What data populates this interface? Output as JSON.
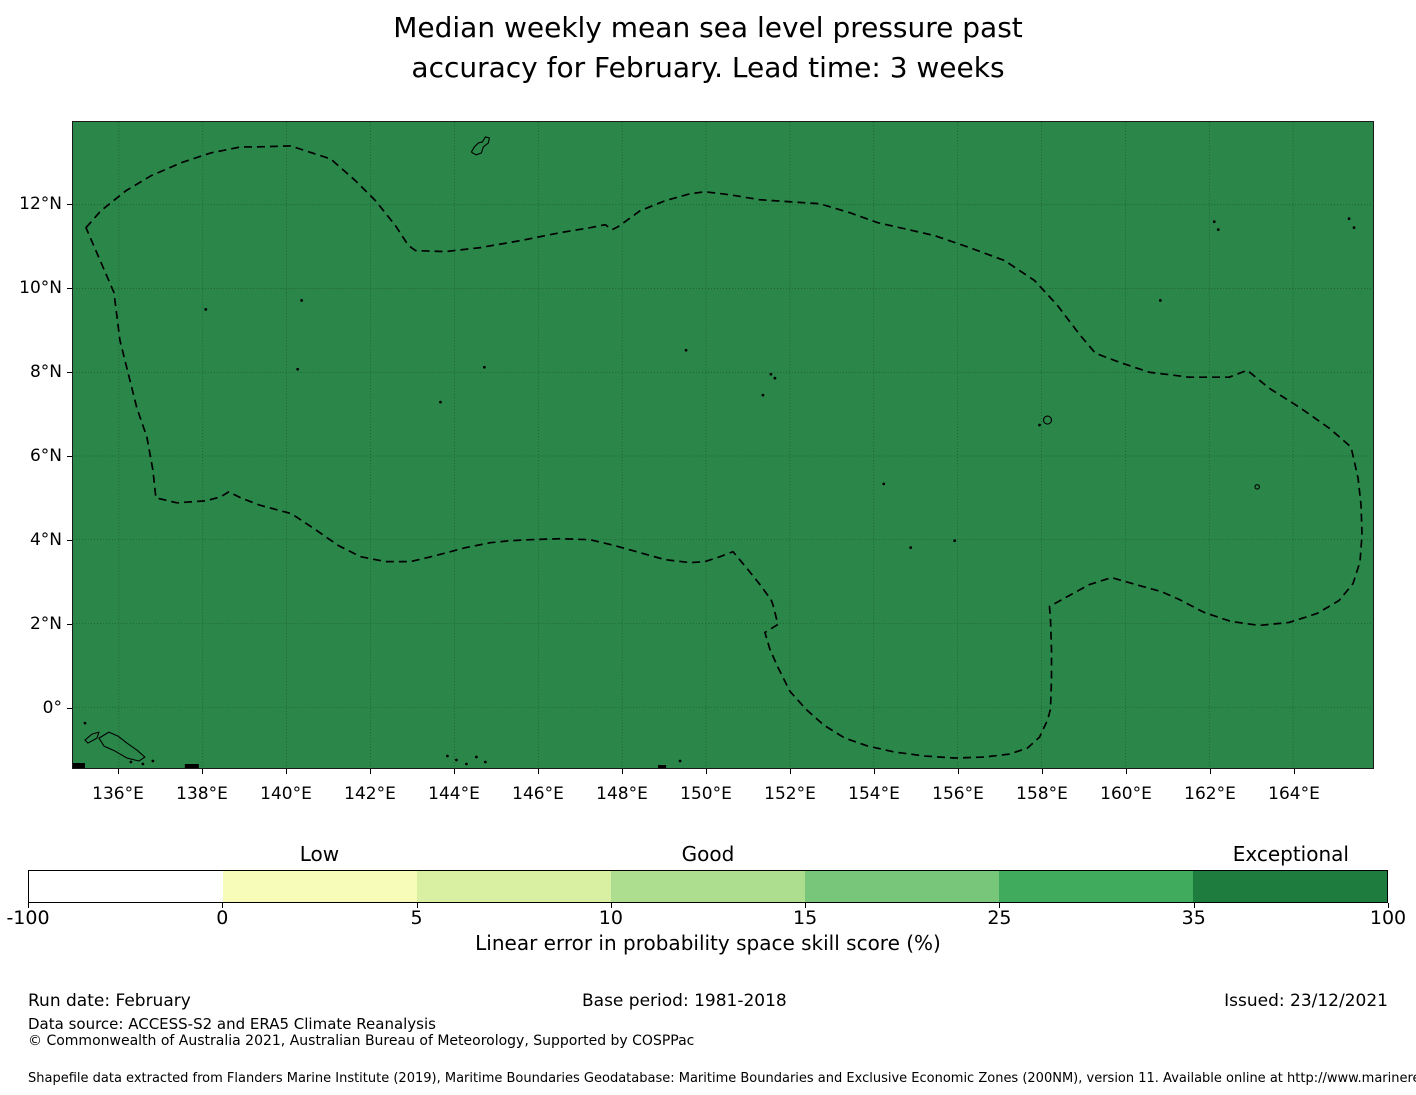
{
  "title": {
    "line1": "Median weekly mean sea level pressure past",
    "line2": "accuracy for February. Lead time: 3 weeks"
  },
  "map": {
    "fill_color": "#2b8749",
    "lon_ticks": [
      {
        "value": 136,
        "label": "136°E"
      },
      {
        "value": 138,
        "label": "138°E"
      },
      {
        "value": 140,
        "label": "140°E"
      },
      {
        "value": 142,
        "label": "142°E"
      },
      {
        "value": 144,
        "label": "144°E"
      },
      {
        "value": 146,
        "label": "146°E"
      },
      {
        "value": 148,
        "label": "148°E"
      },
      {
        "value": 150,
        "label": "150°E"
      },
      {
        "value": 152,
        "label": "152°E"
      },
      {
        "value": 154,
        "label": "154°E"
      },
      {
        "value": 156,
        "label": "156°E"
      },
      {
        "value": 158,
        "label": "158°E"
      },
      {
        "value": 160,
        "label": "160°E"
      },
      {
        "value": 162,
        "label": "162°E"
      },
      {
        "value": 164,
        "label": "164°E"
      }
    ],
    "lat_ticks": [
      {
        "value": 12,
        "label": "12°N"
      },
      {
        "value": 10,
        "label": "10°N"
      },
      {
        "value": 8,
        "label": "8°N"
      },
      {
        "value": 6,
        "label": "6°N"
      },
      {
        "value": 4,
        "label": "4°N"
      },
      {
        "value": 2,
        "label": "2°N"
      },
      {
        "value": 0,
        "label": "0°"
      }
    ]
  },
  "colorbar": {
    "segment_colors": [
      "#ffffff",
      "#f7fcb9",
      "#d9f0a3",
      "#addd8e",
      "#78c679",
      "#41ab5d",
      "#1e7c3f"
    ],
    "tick_labels": [
      "-100",
      "0",
      "5",
      "10",
      "15",
      "25",
      "35",
      "100"
    ],
    "categories": [
      {
        "label": "Low",
        "bin": 1
      },
      {
        "label": "Good",
        "bin": 3
      },
      {
        "label": "Exceptional",
        "bin": 6
      }
    ],
    "axis_label": "Linear error in probability space skill score (%)"
  },
  "footer": {
    "run_date": "Run date: February",
    "base_period": "Base period: 1981-2018",
    "issued": "Issued: 23/12/2021",
    "data_source": "Data source: ACCESS-S2 and ERA5 Climate Reanalysis",
    "copyright": "© Commonwealth of Australia 2021, Australian Bureau of Meteorology, Supported by COSPPac",
    "shapefile_note": "Shapefile data extracted from Flanders Marine Institute (2019), Maritime Boundaries Geodatabase: Maritime Boundaries and Exclusive Economic Zones (200NM), version 11. Available online at http://www.marineregions.org/."
  },
  "chart_data": {
    "type": "heatmap",
    "title": "Median weekly mean sea level pressure past accuracy for February. Lead time: 3 weeks",
    "variable": "Median weekly mean sea level pressure past accuracy",
    "month": "February",
    "lead_time": "3 weeks",
    "x": {
      "label": "Longitude",
      "unit": "°E",
      "ticks": [
        136,
        138,
        140,
        142,
        144,
        146,
        148,
        150,
        152,
        154,
        156,
        158,
        160,
        162,
        164
      ],
      "range": [
        134.9,
        165.9
      ]
    },
    "y": {
      "label": "Latitude",
      "unit": "°N",
      "ticks": [
        12,
        10,
        8,
        6,
        4,
        2,
        0
      ],
      "range": [
        -1.5,
        14.0
      ]
    },
    "colorbar": {
      "label": "Linear error in probability space skill score (%)",
      "boundaries": [
        -100,
        0,
        5,
        10,
        15,
        25,
        35,
        100
      ],
      "colors": [
        "#ffffff",
        "#f7fcb9",
        "#d9f0a3",
        "#addd8e",
        "#78c679",
        "#41ab5d",
        "#1e7c3f"
      ],
      "category_labels": [
        {
          "label": "Low",
          "range": [
            0,
            5
          ]
        },
        {
          "label": "Good",
          "range": [
            10,
            15
          ]
        },
        {
          "label": "Exceptional",
          "range": [
            35,
            100
          ]
        }
      ],
      "orientation": "horizontal"
    },
    "values": {
      "description": "Uniform dark-green fill over the entire mapped region",
      "uniform_value_bin": "35-100",
      "uniform_value_category": "Exceptional"
    },
    "overlays": [
      "Dashed black EEZ boundary polygon (Federated States of Micronesia region)",
      "Thin black island/coastline outlines (Guam, atolls, New Ireland area)"
    ],
    "grid": true,
    "run_date": "February",
    "base_period": "1981-2018",
    "issued": "23/12/2021"
  }
}
